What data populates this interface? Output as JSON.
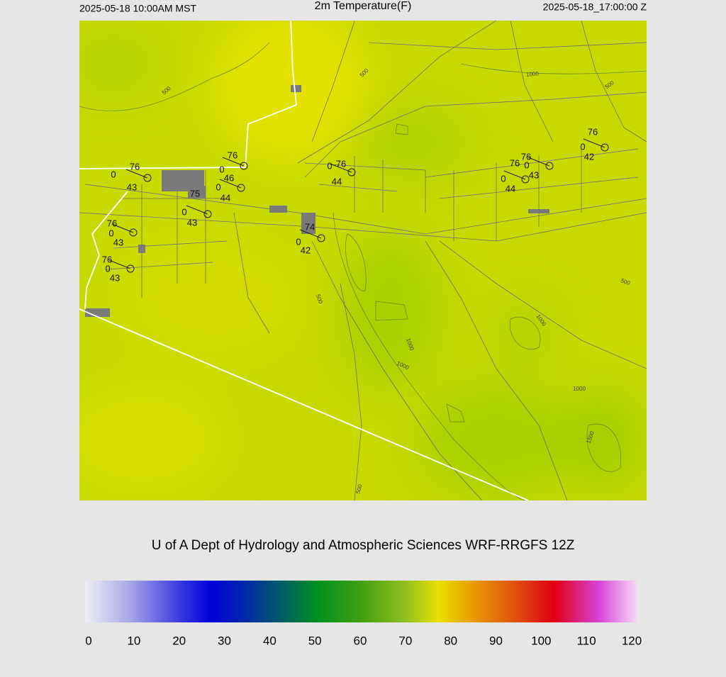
{
  "header": {
    "left": "2025-05-18 10:00AM MST",
    "title": "2m Temperature(F)",
    "right": "2025-05-18_17:00:00 Z"
  },
  "stations": [
    {
      "temperature": 76,
      "wind": 0,
      "dewpoint": 43
    },
    {
      "temperature": 76,
      "wind": 0,
      "dewpoint": 46
    },
    {
      "wind": 0,
      "dewpoint": 44
    },
    {
      "temperature": 75,
      "wind": 0,
      "dewpoint": 43
    },
    {
      "temperature": 76,
      "wind": 0,
      "dewpoint": 43
    },
    {
      "temperature": 76,
      "wind": 0,
      "dewpoint": 43
    },
    {
      "temperature": 74,
      "wind": 0,
      "dewpoint": 42
    },
    {
      "temperature": 76,
      "wind": 0,
      "dewpoint": 44
    },
    {
      "temperature": 76,
      "wind": 0,
      "dewpoint": 44
    },
    {
      "temperature": 76,
      "wind": 0,
      "dewpoint": 43
    },
    {
      "temperature": 76,
      "wind": 0,
      "dewpoint": 42
    }
  ],
  "contour_labels": [
    500,
    500,
    1000,
    500,
    500,
    500,
    1000,
    1000,
    1000,
    1000,
    1500,
    500
  ],
  "footer": "U of A Dept of Hydrology and Atmospheric Sciences WRF-RRGFS 12Z",
  "colorbar": {
    "lim": [
      0,
      120
    ],
    "ticks": [
      0,
      10,
      20,
      30,
      40,
      50,
      60,
      70,
      80,
      90,
      100,
      110,
      120
    ]
  }
}
